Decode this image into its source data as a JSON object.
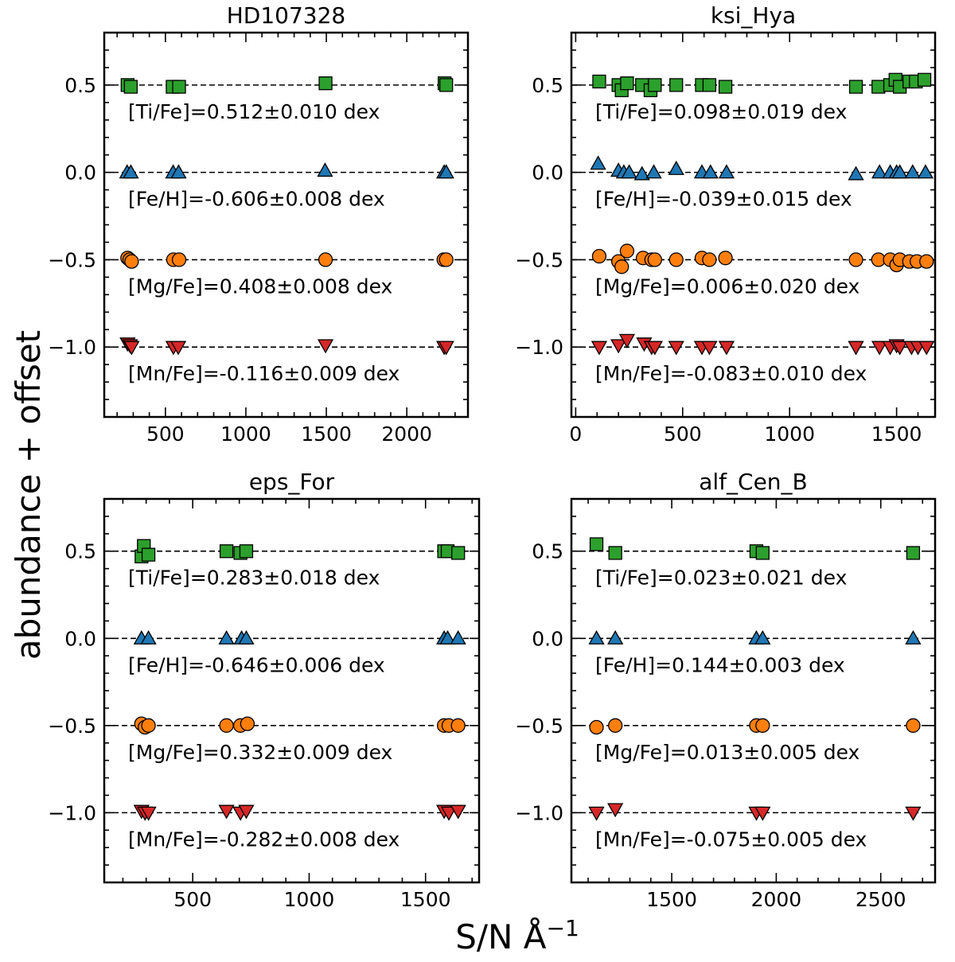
{
  "figure": {
    "ylabel": "abundance + offset",
    "xlabel": "S/N Å⁻¹"
  },
  "colors": {
    "Ti": "#2ca02c",
    "Fe": "#1f77b4",
    "Mg": "#ff7f0e",
    "Mn": "#d62728"
  },
  "chart_data": [
    {
      "type": "scatter",
      "title": "HD107328",
      "xlim": [
        120,
        2380
      ],
      "ylim": [
        -1.4,
        0.8
      ],
      "xticks": [
        500,
        1000,
        1500,
        2000
      ],
      "yticks": [
        0.5,
        0.0,
        -0.5,
        -1.0
      ],
      "ytick_labels": [
        "0.5",
        "0.0",
        "−0.5",
        "−1.0"
      ],
      "show_yticklabels": true,
      "series": [
        {
          "name": "Ti",
          "marker": "square",
          "offset": 0.5,
          "annotation": "[Ti/Fe]=0.512±0.010 dex",
          "points": [
            [
              265,
              0.5
            ],
            [
              285,
              0.49
            ],
            [
              545,
              0.49
            ],
            [
              585,
              0.49
            ],
            [
              1495,
              0.51
            ],
            [
              2235,
              0.51
            ],
            [
              2245,
              0.5
            ]
          ]
        },
        {
          "name": "Fe",
          "marker": "triangle-up",
          "offset": 0.0,
          "annotation": "[Fe/H]=-0.606±0.008 dex",
          "points": [
            [
              262,
              0.0
            ],
            [
              285,
              0.0
            ],
            [
              548,
              0.0
            ],
            [
              582,
              0.0
            ],
            [
              1492,
              0.01
            ],
            [
              2232,
              0.0
            ],
            [
              2245,
              0.0
            ]
          ]
        },
        {
          "name": "Mg",
          "marker": "circle",
          "offset": -0.5,
          "annotation": "[Mg/Fe]=0.408±0.008 dex",
          "points": [
            [
              265,
              -0.49
            ],
            [
              278,
              -0.5
            ],
            [
              290,
              -0.51
            ],
            [
              550,
              -0.5
            ],
            [
              585,
              -0.5
            ],
            [
              1495,
              -0.5
            ],
            [
              2230,
              -0.5
            ],
            [
              2245,
              -0.5
            ]
          ]
        },
        {
          "name": "Mn",
          "marker": "triangle-down",
          "offset": -1.0,
          "annotation": "[Mn/Fe]=-0.116±0.009 dex",
          "points": [
            [
              265,
              -0.98
            ],
            [
              280,
              -0.99
            ],
            [
              290,
              -1.0
            ],
            [
              550,
              -1.0
            ],
            [
              580,
              -1.0
            ],
            [
              1495,
              -0.99
            ],
            [
              2232,
              -1.0
            ],
            [
              2245,
              -1.0
            ]
          ]
        }
      ]
    },
    {
      "type": "scatter",
      "title": "ksi_Hya",
      "xlim": [
        -20,
        1680
      ],
      "ylim": [
        -1.4,
        0.8
      ],
      "xticks": [
        0,
        500,
        1000,
        1500
      ],
      "yticks": [
        0.5,
        0.0,
        -0.5,
        -1.0
      ],
      "ytick_labels": [
        "0.5",
        "0.0",
        "−0.5",
        "−1.0"
      ],
      "show_yticklabels": true,
      "series": [
        {
          "name": "Ti",
          "marker": "square",
          "offset": 0.5,
          "annotation": "[Ti/Fe]=0.098±0.019 dex",
          "points": [
            [
              110,
              0.52
            ],
            [
              200,
              0.5
            ],
            [
              215,
              0.47
            ],
            [
              240,
              0.51
            ],
            [
              310,
              0.5
            ],
            [
              350,
              0.47
            ],
            [
              370,
              0.5
            ],
            [
              470,
              0.5
            ],
            [
              590,
              0.5
            ],
            [
              625,
              0.5
            ],
            [
              700,
              0.49
            ],
            [
              1310,
              0.49
            ],
            [
              1415,
              0.49
            ],
            [
              1470,
              0.5
            ],
            [
              1495,
              0.53
            ],
            [
              1515,
              0.49
            ],
            [
              1560,
              0.52
            ],
            [
              1590,
              0.52
            ],
            [
              1630,
              0.53
            ]
          ]
        },
        {
          "name": "Fe",
          "marker": "triangle-up",
          "offset": 0.0,
          "annotation": "[Fe/H]=-0.039±0.015 dex",
          "points": [
            [
              105,
              0.05
            ],
            [
              200,
              0.01
            ],
            [
              225,
              0.0
            ],
            [
              250,
              0.0
            ],
            [
              310,
              -0.01
            ],
            [
              365,
              0.0
            ],
            [
              470,
              0.02
            ],
            [
              590,
              0.0
            ],
            [
              630,
              0.0
            ],
            [
              705,
              0.0
            ],
            [
              1310,
              -0.01
            ],
            [
              1420,
              0.0
            ],
            [
              1470,
              0.0
            ],
            [
              1500,
              0.0
            ],
            [
              1515,
              0.0
            ],
            [
              1575,
              0.0
            ],
            [
              1635,
              0.0
            ]
          ]
        },
        {
          "name": "Mg",
          "marker": "circle",
          "offset": -0.5,
          "annotation": "[Mg/Fe]=0.006±0.020 dex",
          "points": [
            [
              110,
              -0.48
            ],
            [
              200,
              -0.51
            ],
            [
              215,
              -0.54
            ],
            [
              240,
              -0.45
            ],
            [
              315,
              -0.49
            ],
            [
              355,
              -0.5
            ],
            [
              370,
              -0.5
            ],
            [
              470,
              -0.5
            ],
            [
              590,
              -0.49
            ],
            [
              625,
              -0.5
            ],
            [
              700,
              -0.49
            ],
            [
              1310,
              -0.5
            ],
            [
              1415,
              -0.5
            ],
            [
              1470,
              -0.5
            ],
            [
              1500,
              -0.53
            ],
            [
              1515,
              -0.5
            ],
            [
              1560,
              -0.51
            ],
            [
              1595,
              -0.51
            ],
            [
              1640,
              -0.51
            ]
          ]
        },
        {
          "name": "Mn",
          "marker": "triangle-down",
          "offset": -1.0,
          "annotation": "[Mn/Fe]=-0.083±0.010 dex",
          "points": [
            [
              110,
              -1.0
            ],
            [
              200,
              -0.99
            ],
            [
              240,
              -0.96
            ],
            [
              320,
              -0.98
            ],
            [
              355,
              -1.0
            ],
            [
              370,
              -1.0
            ],
            [
              470,
              -1.0
            ],
            [
              590,
              -1.0
            ],
            [
              625,
              -1.0
            ],
            [
              705,
              -1.0
            ],
            [
              1310,
              -1.0
            ],
            [
              1420,
              -1.0
            ],
            [
              1470,
              -1.0
            ],
            [
              1500,
              -0.99
            ],
            [
              1515,
              -1.0
            ],
            [
              1570,
              -1.0
            ],
            [
              1600,
              -1.0
            ],
            [
              1640,
              -1.0
            ]
          ]
        }
      ]
    },
    {
      "type": "scatter",
      "title": "eps_For",
      "xlim": [
        120,
        1730
      ],
      "ylim": [
        -1.4,
        0.8
      ],
      "xticks": [
        500,
        1000,
        1500
      ],
      "yticks": [
        0.5,
        0.0,
        -0.5,
        -1.0
      ],
      "ytick_labels": [
        "0.5",
        "0.0",
        "−0.5",
        "−1.0"
      ],
      "show_yticklabels": true,
      "series": [
        {
          "name": "Ti",
          "marker": "square",
          "offset": 0.5,
          "annotation": "[Ti/Fe]=0.283±0.018 dex",
          "points": [
            [
              280,
              0.47
            ],
            [
              290,
              0.53
            ],
            [
              310,
              0.48
            ],
            [
              645,
              0.5
            ],
            [
              705,
              0.49
            ],
            [
              730,
              0.5
            ],
            [
              1580,
              0.5
            ],
            [
              1595,
              0.5
            ],
            [
              1640,
              0.49
            ]
          ]
        },
        {
          "name": "Fe",
          "marker": "triangle-up",
          "offset": 0.0,
          "annotation": "[Fe/H]=-0.646±0.006 dex",
          "points": [
            [
              280,
              0.0
            ],
            [
              310,
              0.0
            ],
            [
              645,
              0.0
            ],
            [
              710,
              0.0
            ],
            [
              730,
              0.0
            ],
            [
              1580,
              0.0
            ],
            [
              1595,
              0.0
            ],
            [
              1640,
              0.0
            ]
          ]
        },
        {
          "name": "Mg",
          "marker": "circle",
          "offset": -0.5,
          "annotation": "[Mg/Fe]=0.332±0.009 dex",
          "points": [
            [
              280,
              -0.49
            ],
            [
              295,
              -0.51
            ],
            [
              310,
              -0.5
            ],
            [
              645,
              -0.5
            ],
            [
              705,
              -0.5
            ],
            [
              735,
              -0.49
            ],
            [
              1580,
              -0.5
            ],
            [
              1600,
              -0.5
            ],
            [
              1640,
              -0.5
            ]
          ]
        },
        {
          "name": "Mn",
          "marker": "triangle-down",
          "offset": -1.0,
          "annotation": "[Mn/Fe]=-0.282±0.008 dex",
          "points": [
            [
              280,
              -0.99
            ],
            [
              295,
              -1.0
            ],
            [
              310,
              -1.0
            ],
            [
              645,
              -0.99
            ],
            [
              705,
              -1.0
            ],
            [
              730,
              -0.99
            ],
            [
              1580,
              -0.99
            ],
            [
              1600,
              -1.0
            ],
            [
              1640,
              -0.99
            ]
          ]
        }
      ]
    },
    {
      "type": "scatter",
      "title": "alf_Cen_B",
      "xlim": [
        1020,
        2760
      ],
      "ylim": [
        -1.4,
        0.8
      ],
      "xticks": [
        1500,
        2000,
        2500
      ],
      "yticks": [
        0.5,
        0.0,
        -0.5,
        -1.0
      ],
      "ytick_labels": [
        "0.5",
        "0.0",
        "−0.5",
        "−1.0"
      ],
      "show_yticklabels": true,
      "series": [
        {
          "name": "Ti",
          "marker": "square",
          "offset": 0.5,
          "annotation": "[Ti/Fe]=0.023±0.021 dex",
          "points": [
            [
              1140,
              0.54
            ],
            [
              1230,
              0.49
            ],
            [
              1905,
              0.5
            ],
            [
              1935,
              0.49
            ],
            [
              2655,
              0.49
            ]
          ]
        },
        {
          "name": "Fe",
          "marker": "triangle-up",
          "offset": 0.0,
          "annotation": "[Fe/H]=0.144±0.003 dex",
          "points": [
            [
              1140,
              0.0
            ],
            [
              1230,
              0.0
            ],
            [
              1905,
              0.0
            ],
            [
              1935,
              0.0
            ],
            [
              2655,
              0.0
            ]
          ]
        },
        {
          "name": "Mg",
          "marker": "circle",
          "offset": -0.5,
          "annotation": "[Mg/Fe]=0.013±0.005 dex",
          "points": [
            [
              1140,
              -0.51
            ],
            [
              1230,
              -0.5
            ],
            [
              1905,
              -0.5
            ],
            [
              1935,
              -0.5
            ],
            [
              2655,
              -0.5
            ]
          ]
        },
        {
          "name": "Mn",
          "marker": "triangle-down",
          "offset": -1.0,
          "annotation": "[Mn/Fe]=-0.075±0.005 dex",
          "points": [
            [
              1140,
              -1.0
            ],
            [
              1230,
              -0.98
            ],
            [
              1905,
              -1.0
            ],
            [
              1935,
              -1.0
            ],
            [
              2655,
              -1.0
            ]
          ]
        }
      ]
    }
  ]
}
